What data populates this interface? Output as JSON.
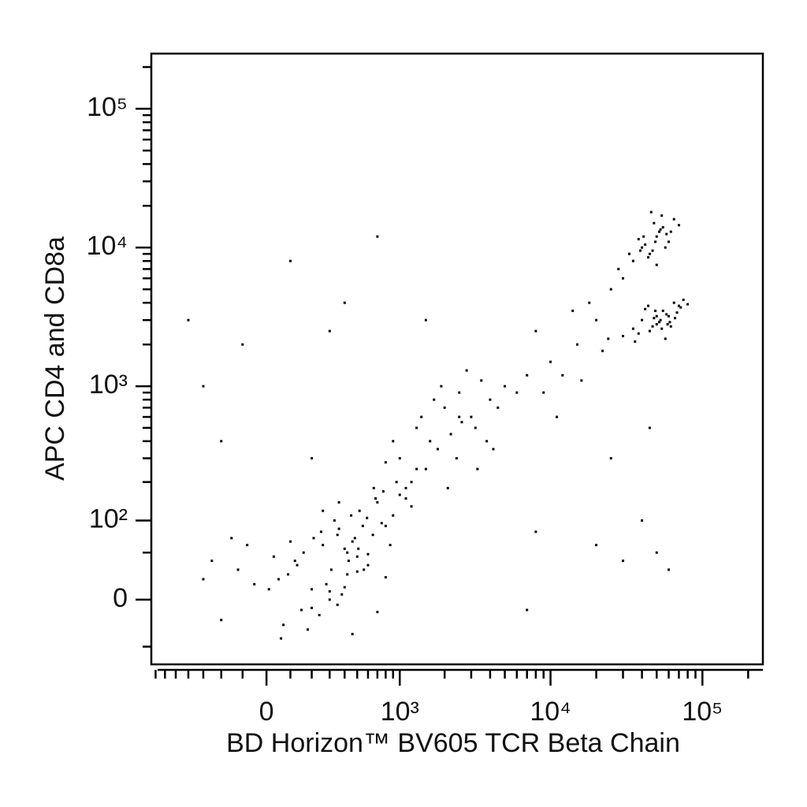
{
  "chart_data": {
    "type": "scatter",
    "x_label": "BD Horizon™ BV605 TCR Beta Chain",
    "y_label": "APC CD4 and CD8a",
    "xscale": "biexponential",
    "yscale": "biexponential",
    "color": "#000000",
    "xlim": [
      -750,
      250000
    ],
    "ylim": [
      -75,
      250000
    ],
    "xticks": [
      0,
      {
        "value": 1000,
        "label": "10³"
      },
      {
        "value": 10000,
        "label": "10⁴"
      },
      {
        "value": 100000,
        "label": "10⁵"
      }
    ],
    "yticks": [
      0,
      {
        "value": 100,
        "label": "10²"
      },
      {
        "value": 1000,
        "label": "10³"
      },
      {
        "value": 10000,
        "label": "10⁴"
      },
      {
        "value": 100000,
        "label": "10⁵"
      }
    ],
    "xminorticks": [
      -700,
      -600,
      -500,
      -400,
      -300,
      -200,
      -100,
      100,
      200,
      300,
      400,
      500,
      600,
      700,
      800,
      900,
      2000,
      3000,
      4000,
      5000,
      6000,
      7000,
      8000,
      9000,
      20000,
      30000,
      40000,
      50000,
      60000,
      70000,
      80000,
      90000,
      200000
    ],
    "yminorticks": [
      -50,
      50,
      200,
      300,
      400,
      500,
      600,
      700,
      800,
      900,
      2000,
      3000,
      4000,
      5000,
      6000,
      7000,
      8000,
      9000,
      20000,
      30000,
      40000,
      50000,
      60000,
      70000,
      80000,
      90000,
      200000
    ],
    "x": [
      50,
      120,
      200,
      260,
      310,
      380,
      420,
      480,
      550,
      600,
      150,
      90,
      30,
      -50,
      -120,
      -200,
      250,
      330,
      400,
      460,
      520,
      700,
      800,
      900,
      1000,
      1200,
      180,
      240,
      300,
      360,
      420,
      500,
      650,
      750,
      -80,
      10,
      70,
      130,
      210,
      280,
      350,
      430,
      510,
      590,
      680,
      770,
      860,
      950,
      1100,
      1300,
      -250,
      -300,
      -150,
      60,
      160,
      260,
      360,
      460,
      560,
      660,
      300,
      400,
      200,
      100,
      500,
      600,
      700,
      800,
      450,
      350,
      1000,
      1300,
      1600,
      2000,
      2500,
      3000,
      3500,
      4000,
      1500,
      1800,
      2200,
      2800,
      3200,
      4500,
      5000,
      1200,
      1400,
      1700,
      2400,
      3800,
      6000,
      7000,
      1100,
      2600,
      3300,
      900,
      800,
      1900,
      2100,
      4200,
      40000,
      50000,
      60000,
      55000,
      45000,
      65000,
      70000,
      35000,
      48000,
      52000,
      58000,
      62000,
      42000,
      38000,
      75000,
      80000,
      30000,
      53000,
      47000,
      68000,
      57000,
      44000,
      61000,
      50000,
      72000,
      36000,
      49000,
      54000,
      66000,
      59000,
      40000,
      50000,
      45000,
      55000,
      60000,
      35000,
      48000,
      52000,
      42000,
      58000,
      47000,
      38000,
      65000,
      44000,
      53000,
      50000,
      46000,
      57000,
      33000,
      70000,
      41000,
      49000,
      54000,
      62000,
      39000,
      10000,
      15000,
      20000,
      25000,
      12000,
      18000,
      8000,
      30000,
      22000,
      14000,
      28000,
      9000,
      16000,
      24000,
      11000,
      -400,
      -300,
      -200,
      100,
      200,
      400,
      700,
      -100,
      300,
      1500,
      2500,
      8000,
      20000,
      30000,
      40000,
      50000,
      60000,
      7000,
      25000,
      45000
    ],
    "values": [
      20,
      40,
      10,
      60,
      30,
      5,
      50,
      70,
      90,
      35,
      -10,
      25,
      45,
      15,
      30,
      -20,
      80,
      100,
      55,
      65,
      120,
      140,
      90,
      110,
      160,
      130,
      -30,
      -15,
      0,
      85,
      25,
      45,
      75,
      95,
      60,
      10,
      -25,
      35,
      70,
      15,
      -5,
      40,
      55,
      105,
      150,
      170,
      60,
      200,
      180,
      250,
      40,
      20,
      70,
      -40,
      50,
      120,
      140,
      -35,
      30,
      180,
      8,
      12,
      -8,
      65,
      28,
      48,
      -12,
      22,
      110,
      75,
      300,
      500,
      400,
      700,
      900,
      600,
      1100,
      800,
      250,
      350,
      450,
      1300,
      500,
      700,
      1000,
      200,
      600,
      800,
      300,
      400,
      900,
      1200,
      150,
      550,
      250,
      400,
      280,
      1000,
      180,
      350,
      3000,
      2800,
      3200,
      3500,
      2500,
      4000,
      3800,
      2600,
      3100,
      2900,
      3300,
      2700,
      3600,
      2400,
      4200,
      3900,
      2300,
      3000,
      2700,
      3400,
      2200,
      3800,
      2900,
      3200,
      3700,
      2100,
      3500,
      2600,
      3100,
      2800,
      10000,
      12000,
      9000,
      14000,
      11000,
      8000,
      15000,
      13000,
      10500,
      12500,
      9500,
      11500,
      16000,
      8500,
      13500,
      7500,
      18000,
      10000,
      9000,
      14500,
      12000,
      11000,
      17000,
      13000,
      9500,
      1500,
      2000,
      3000,
      5000,
      1200,
      4000,
      2500,
      6000,
      1800,
      3500,
      7000,
      900,
      1100,
      2200,
      600,
      3000,
      1000,
      400,
      8000,
      300,
      4000,
      12000,
      2000,
      2500,
      3000,
      600,
      80,
      60,
      40,
      100,
      50,
      30,
      -10,
      300,
      500
    ]
  }
}
